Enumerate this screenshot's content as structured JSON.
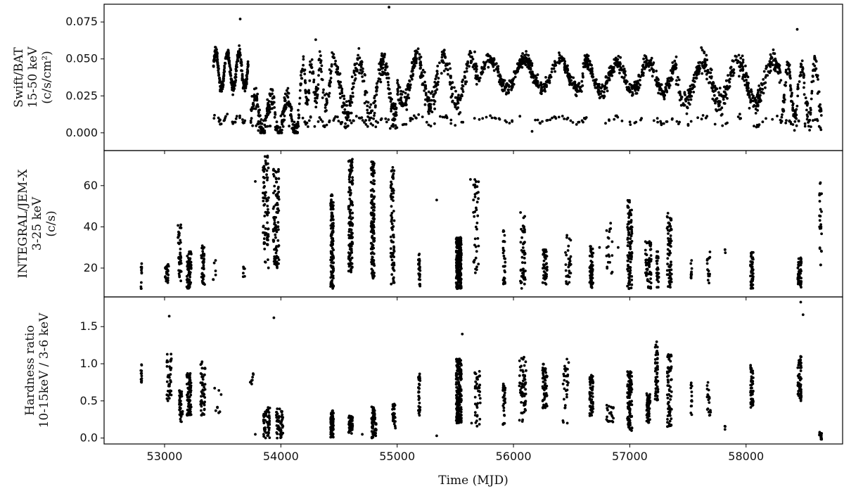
{
  "chart_data": [
    {
      "type": "scatter",
      "panel": "top",
      "ylabel": [
        "Swift/BAT",
        "15-50 keV",
        "(c/s/cm²)"
      ],
      "ylim": [
        -0.012,
        0.087
      ],
      "yticks": [
        0.0,
        0.025,
        0.05,
        0.075
      ],
      "ytick_labels": [
        "0.000",
        "0.025",
        "0.050",
        "0.075"
      ],
      "xlim": [
        52480,
        58830
      ],
      "grid": false,
      "series": [
        {
          "segments": [
            {
              "x": [
                53420,
                53720
              ],
              "n": 320,
              "base": 0.042,
              "amp": 0.012,
              "noise": 0.006
            },
            {
              "x": [
                53740,
                54160
              ],
              "n": 260,
              "base": 0.012,
              "amp": 0.012,
              "noise": 0.012
            },
            {
              "x": [
                54160,
                54380
              ],
              "n": 110,
              "base": 0.035,
              "amp": 0.014,
              "noise": 0.012
            },
            {
              "x": [
                54380,
                55000
              ],
              "n": 320,
              "base": 0.03,
              "amp": 0.018,
              "noise": 0.014
            },
            {
              "x": [
                55000,
                55700
              ],
              "n": 340,
              "base": 0.035,
              "amp": 0.015,
              "noise": 0.012
            },
            {
              "x": [
                55700,
                56600
              ],
              "n": 430,
              "base": 0.04,
              "amp": 0.01,
              "noise": 0.007
            },
            {
              "x": [
                56600,
                57400
              ],
              "n": 400,
              "base": 0.038,
              "amp": 0.01,
              "noise": 0.008
            },
            {
              "x": [
                57400,
                58300
              ],
              "n": 420,
              "base": 0.035,
              "amp": 0.014,
              "noise": 0.012
            },
            {
              "x": [
                58300,
                58650
              ],
              "n": 180,
              "base": 0.028,
              "amp": 0.018,
              "noise": 0.012
            }
          ],
          "outliers": [
            [
              53650,
              0.077
            ],
            [
              54930,
              0.085
            ],
            [
              56160,
              0.001
            ],
            [
              54300,
              0.063
            ],
            [
              58440,
              0.07
            ]
          ]
        }
      ]
    },
    {
      "type": "scatter",
      "panel": "middle",
      "ylabel": [
        "INTEGRAL/JEM-X",
        "3-25 keV",
        "(c/s)"
      ],
      "ylim": [
        6,
        77
      ],
      "yticks": [
        20,
        40,
        60
      ],
      "ytick_labels": [
        "20",
        "40",
        "60"
      ],
      "xlim": [
        52480,
        58830
      ],
      "grid": false,
      "series": [
        {
          "clusters": [
            {
              "x": 52800,
              "w": 8,
              "n": 12,
              "y": [
                10,
                25
              ]
            },
            {
              "x": 53020,
              "w": 30,
              "n": 28,
              "y": [
                12,
                22
              ]
            },
            {
              "x": 53130,
              "w": 30,
              "n": 40,
              "y": [
                12,
                42
              ]
            },
            {
              "x": 53210,
              "w": 40,
              "n": 70,
              "y": [
                10,
                28
              ]
            },
            {
              "x": 53330,
              "w": 30,
              "n": 40,
              "y": [
                12,
                31
              ]
            },
            {
              "x": 53420,
              "w": 40,
              "n": 6,
              "y": [
                12,
                26
              ]
            },
            {
              "x": 53680,
              "w": 20,
              "n": 6,
              "y": [
                14,
                22
              ]
            },
            {
              "x": 53870,
              "w": 50,
              "n": 80,
              "y": [
                20,
                75
              ]
            },
            {
              "x": 53960,
              "w": 50,
              "n": 90,
              "y": [
                20,
                68
              ]
            },
            {
              "x": 54440,
              "w": 25,
              "n": 140,
              "y": [
                10,
                56
              ]
            },
            {
              "x": 54600,
              "w": 35,
              "n": 130,
              "y": [
                18,
                73
              ]
            },
            {
              "x": 54790,
              "w": 30,
              "n": 140,
              "y": [
                15,
                72
              ]
            },
            {
              "x": 54960,
              "w": 30,
              "n": 80,
              "y": [
                12,
                69
              ]
            },
            {
              "x": 55190,
              "w": 15,
              "n": 30,
              "y": [
                11,
                27
              ]
            },
            {
              "x": 55530,
              "w": 45,
              "n": 260,
              "y": [
                10,
                35
              ]
            },
            {
              "x": 55680,
              "w": 50,
              "n": 40,
              "y": [
                15,
                63
              ]
            },
            {
              "x": 55920,
              "w": 20,
              "n": 30,
              "y": [
                12,
                40
              ]
            },
            {
              "x": 56080,
              "w": 50,
              "n": 50,
              "y": [
                10,
                47
              ]
            },
            {
              "x": 56270,
              "w": 40,
              "n": 50,
              "y": [
                12,
                29
              ]
            },
            {
              "x": 56470,
              "w": 50,
              "n": 30,
              "y": [
                12,
                37
              ]
            },
            {
              "x": 56670,
              "w": 30,
              "n": 60,
              "y": [
                10,
                31
              ]
            },
            {
              "x": 56830,
              "w": 60,
              "n": 20,
              "y": [
                15,
                42
              ]
            },
            {
              "x": 57000,
              "w": 40,
              "n": 110,
              "y": [
                10,
                54
              ]
            },
            {
              "x": 57160,
              "w": 50,
              "n": 60,
              "y": [
                10,
                33
              ]
            },
            {
              "x": 57240,
              "w": 20,
              "n": 30,
              "y": [
                10,
                28
              ]
            },
            {
              "x": 57340,
              "w": 40,
              "n": 70,
              "y": [
                10,
                47
              ]
            },
            {
              "x": 57530,
              "w": 10,
              "n": 10,
              "y": [
                12,
                27
              ]
            },
            {
              "x": 57680,
              "w": 30,
              "n": 15,
              "y": [
                12,
                31
              ]
            },
            {
              "x": 57820,
              "w": 5,
              "n": 3,
              "y": [
                27,
                29
              ]
            },
            {
              "x": 58050,
              "w": 25,
              "n": 50,
              "y": [
                10,
                28
              ]
            },
            {
              "x": 58460,
              "w": 30,
              "n": 50,
              "y": [
                10,
                25
              ]
            },
            {
              "x": 58640,
              "w": 20,
              "n": 25,
              "y": [
                18,
                62
              ]
            }
          ],
          "outliers": [
            [
              53780,
              62
            ],
            [
              55340,
              53
            ],
            [
              55630,
              63
            ],
            [
              56740,
              30
            ],
            [
              56900,
              30
            ]
          ]
        }
      ]
    },
    {
      "type": "scatter",
      "panel": "bottom",
      "ylabel": [
        "Hardness ratio",
        "10-15keV / 3-6 keV"
      ],
      "xlabel": "Time (MJD)",
      "ylim": [
        -0.08,
        1.9
      ],
      "yticks": [
        0.0,
        0.5,
        1.0,
        1.5
      ],
      "ytick_labels": [
        "0.0",
        "0.5",
        "1.0",
        "1.5"
      ],
      "xticks": [
        53000,
        54000,
        55000,
        56000,
        57000,
        58000
      ],
      "xtick_labels": [
        "53000",
        "54000",
        "55000",
        "56000",
        "57000",
        "58000"
      ],
      "xlim": [
        52480,
        58830
      ],
      "grid": false,
      "series": [
        {
          "clusters": [
            {
              "x": 52800,
              "w": 8,
              "n": 12,
              "y": [
                0.72,
                1.0
              ]
            },
            {
              "x": 53040,
              "w": 40,
              "n": 40,
              "y": [
                0.5,
                1.15
              ]
            },
            {
              "x": 53140,
              "w": 30,
              "n": 40,
              "y": [
                0.2,
                0.65
              ]
            },
            {
              "x": 53210,
              "w": 40,
              "n": 80,
              "y": [
                0.3,
                0.9
              ]
            },
            {
              "x": 53330,
              "w": 40,
              "n": 50,
              "y": [
                0.3,
                1.03
              ]
            },
            {
              "x": 53460,
              "w": 60,
              "n": 8,
              "y": [
                0.3,
                0.7
              ]
            },
            {
              "x": 53750,
              "w": 30,
              "n": 8,
              "y": [
                0.7,
                0.9
              ]
            },
            {
              "x": 53880,
              "w": 60,
              "n": 50,
              "y": [
                0.0,
                0.42
              ]
            },
            {
              "x": 53990,
              "w": 60,
              "n": 50,
              "y": [
                0.0,
                0.4
              ]
            },
            {
              "x": 54440,
              "w": 25,
              "n": 90,
              "y": [
                0.0,
                0.37
              ]
            },
            {
              "x": 54600,
              "w": 35,
              "n": 50,
              "y": [
                0.05,
                0.3
              ]
            },
            {
              "x": 54800,
              "w": 40,
              "n": 60,
              "y": [
                0.0,
                0.42
              ]
            },
            {
              "x": 54970,
              "w": 30,
              "n": 30,
              "y": [
                0.13,
                0.47
              ]
            },
            {
              "x": 55190,
              "w": 15,
              "n": 35,
              "y": [
                0.3,
                0.87
              ]
            },
            {
              "x": 55530,
              "w": 45,
              "n": 200,
              "y": [
                0.2,
                1.07
              ]
            },
            {
              "x": 55690,
              "w": 50,
              "n": 40,
              "y": [
                0.15,
                0.9
              ]
            },
            {
              "x": 55920,
              "w": 20,
              "n": 30,
              "y": [
                0.18,
                0.75
              ]
            },
            {
              "x": 56080,
              "w": 60,
              "n": 60,
              "y": [
                0.2,
                1.1
              ]
            },
            {
              "x": 56270,
              "w": 40,
              "n": 60,
              "y": [
                0.4,
                1.0
              ]
            },
            {
              "x": 56450,
              "w": 50,
              "n": 30,
              "y": [
                0.2,
                1.07
              ]
            },
            {
              "x": 56670,
              "w": 30,
              "n": 60,
              "y": [
                0.3,
                0.85
              ]
            },
            {
              "x": 56830,
              "w": 60,
              "n": 20,
              "y": [
                0.2,
                0.45
              ]
            },
            {
              "x": 57000,
              "w": 40,
              "n": 100,
              "y": [
                0.1,
                0.9
              ]
            },
            {
              "x": 57160,
              "w": 30,
              "n": 50,
              "y": [
                0.2,
                0.6
              ]
            },
            {
              "x": 57230,
              "w": 25,
              "n": 60,
              "y": [
                0.5,
                1.3
              ]
            },
            {
              "x": 57340,
              "w": 40,
              "n": 70,
              "y": [
                0.15,
                1.15
              ]
            },
            {
              "x": 57530,
              "w": 10,
              "n": 15,
              "y": [
                0.3,
                0.75
              ]
            },
            {
              "x": 57680,
              "w": 30,
              "n": 20,
              "y": [
                0.3,
                0.75
              ]
            },
            {
              "x": 57820,
              "w": 5,
              "n": 3,
              "y": [
                0.1,
                0.17
              ]
            },
            {
              "x": 58050,
              "w": 25,
              "n": 50,
              "y": [
                0.4,
                0.98
              ]
            },
            {
              "x": 58460,
              "w": 30,
              "n": 60,
              "y": [
                0.5,
                1.1
              ]
            },
            {
              "x": 58640,
              "w": 20,
              "n": 15,
              "y": [
                -0.02,
                0.08
              ]
            }
          ],
          "outliers": [
            [
              53040,
              1.64
            ],
            [
              53940,
              1.62
            ],
            [
              55340,
              0.03
            ],
            [
              55560,
              1.4
            ],
            [
              58470,
              1.83
            ],
            [
              58490,
              1.66
            ],
            [
              53780,
              0.05
            ],
            [
              55640,
              0.2
            ],
            [
              54700,
              0.05
            ]
          ]
        }
      ]
    }
  ]
}
